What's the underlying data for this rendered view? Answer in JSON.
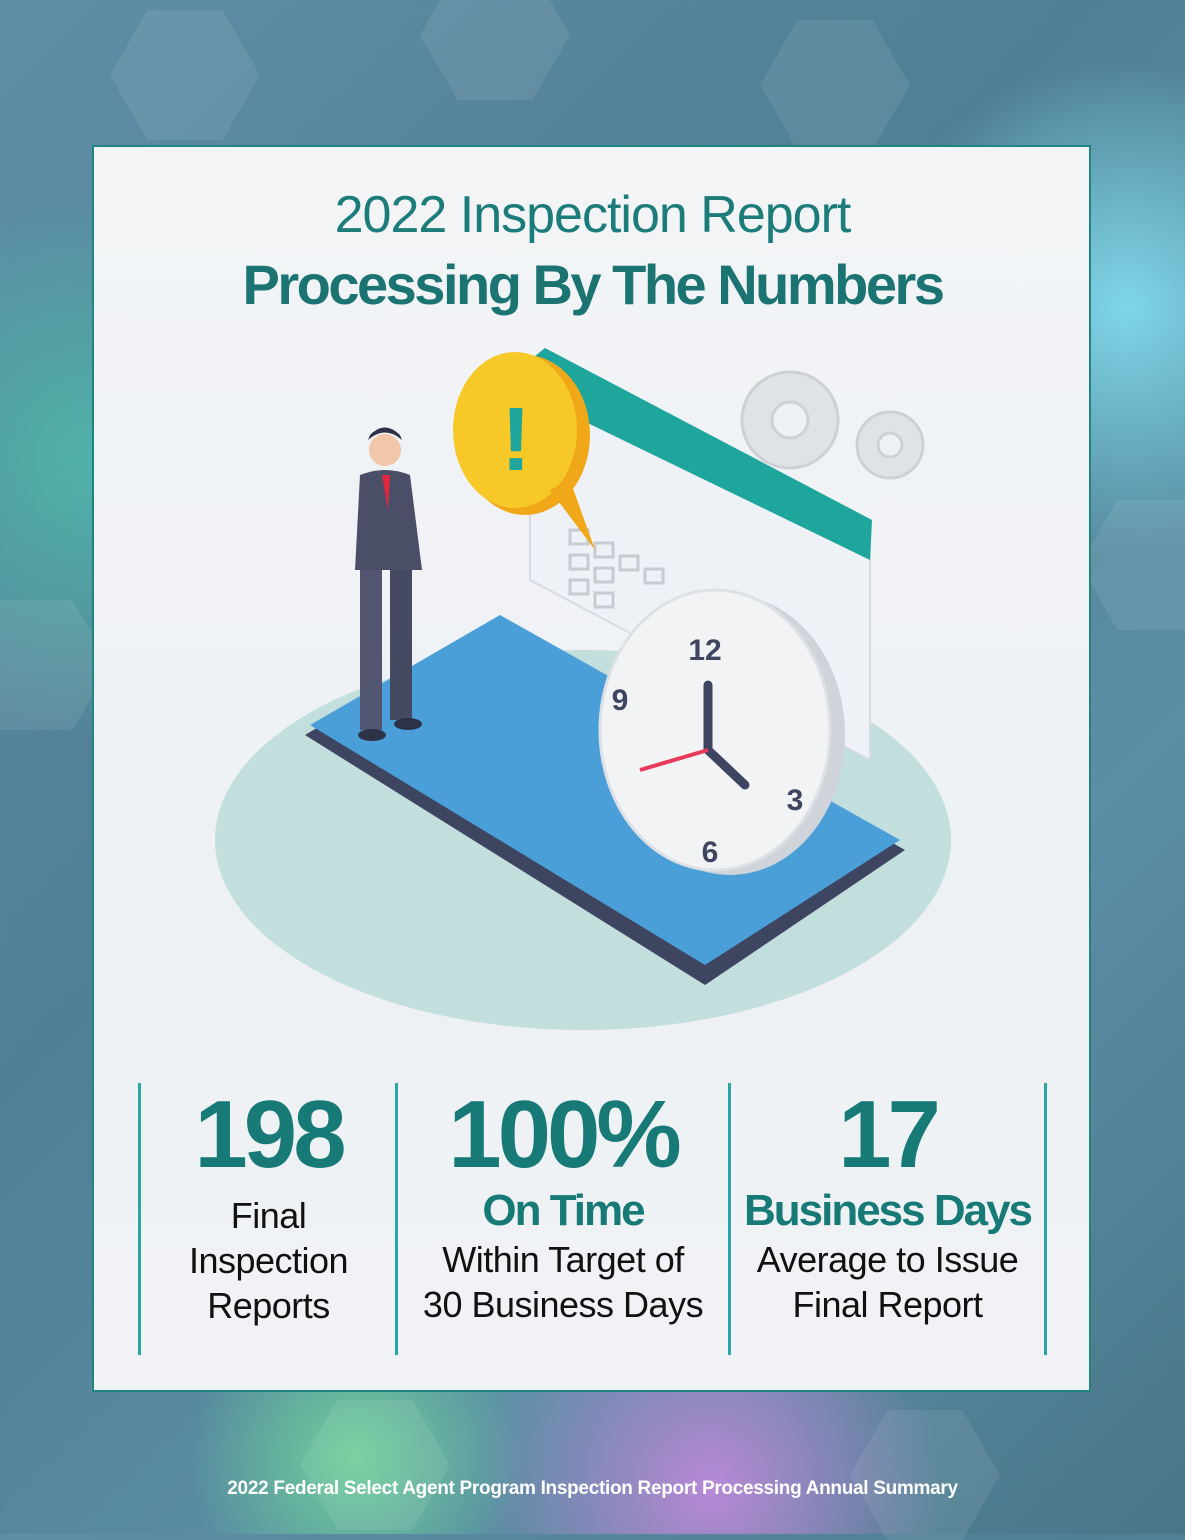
{
  "header": {
    "title_line1": "2022 Inspection Report",
    "title_line2": "Processing By The Numbers"
  },
  "illustration": {
    "subject": "businessman on smartphone with clock, calendar, alert bubble and gears",
    "clock_numbers": [
      "12",
      "3",
      "6",
      "9"
    ],
    "alert_symbol": "!"
  },
  "stats": [
    {
      "value": "198",
      "subtitle": "",
      "desc_lines": [
        "Final",
        "Inspection",
        "Reports"
      ]
    },
    {
      "value": "100%",
      "subtitle": "On Time",
      "desc_lines": [
        "Within Target of",
        "30 Business Days"
      ]
    },
    {
      "value": "17",
      "subtitle": "Business Days",
      "desc_lines": [
        "Average to Issue",
        "Final Report"
      ]
    }
  ],
  "footer": {
    "text": "2022 Federal Select Agent Program Inspection Report Processing Annual Summary"
  },
  "colors": {
    "accent": "#177a76",
    "divider": "#2aa5a5",
    "alert": "#f5c518"
  }
}
